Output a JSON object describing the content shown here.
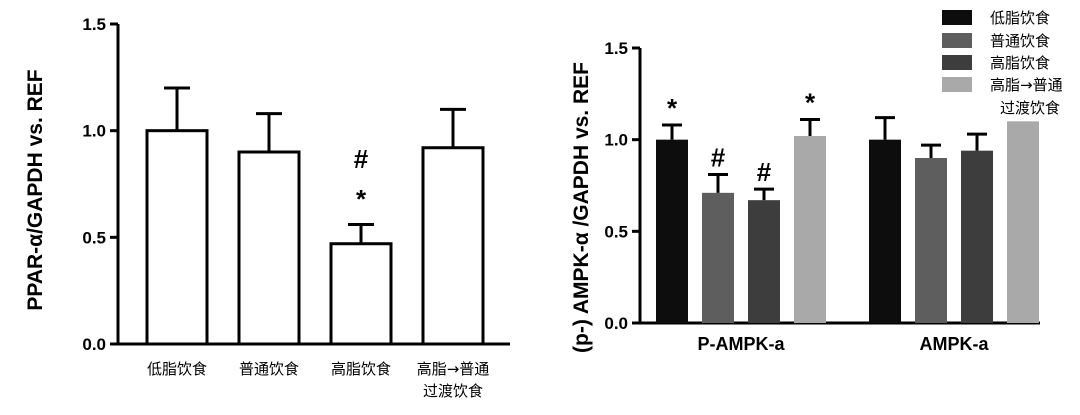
{
  "chart_data": [
    {
      "type": "bar",
      "ylabel": "PPAR-α/GAPDH vs. REF",
      "ylim": [
        0,
        1.5
      ],
      "yticks": [
        "0.0",
        "0.5",
        "1.0",
        "1.5"
      ],
      "categories": [
        "低脂饮食",
        "普通饮食",
        "高脂饮食",
        "高脂→普通\n过渡饮食"
      ],
      "values": [
        1.0,
        0.9,
        0.47,
        0.92
      ],
      "errors": [
        0.2,
        0.18,
        0.09,
        0.18
      ],
      "annotations": [
        "",
        "",
        "#\n*",
        ""
      ],
      "bar_style": "outline",
      "grid": false
    },
    {
      "type": "bar",
      "ylabel": "(p-) AMPK-α /GAPDH vs. REF",
      "ylim": [
        0,
        1.5
      ],
      "yticks": [
        "0.0",
        "0.5",
        "1.0",
        "1.5"
      ],
      "categories": [
        "P-AMPK-a",
        "AMPK-a"
      ],
      "series": [
        {
          "name": "低脂饮食",
          "values": [
            1.0,
            1.0
          ],
          "errors": [
            0.08,
            0.12
          ],
          "annotations": [
            "*",
            ""
          ]
        },
        {
          "name": "普通饮食",
          "values": [
            0.71,
            0.9
          ],
          "errors": [
            0.1,
            0.07
          ],
          "annotations": [
            "#",
            ""
          ]
        },
        {
          "name": "高脂饮食",
          "values": [
            0.67,
            0.94
          ],
          "errors": [
            0.06,
            0.09
          ],
          "annotations": [
            "#",
            ""
          ]
        },
        {
          "name": "高脂→普通\n过渡饮食",
          "values": [
            1.02,
            1.1
          ],
          "errors": [
            0.09,
            0
          ],
          "annotations": [
            "*",
            ""
          ]
        }
      ],
      "colors": [
        "#0d0d0d",
        "#5e5e5e",
        "#3d3d3d",
        "#a9a9a9"
      ],
      "legend_position": "top-right",
      "grid": false
    }
  ]
}
